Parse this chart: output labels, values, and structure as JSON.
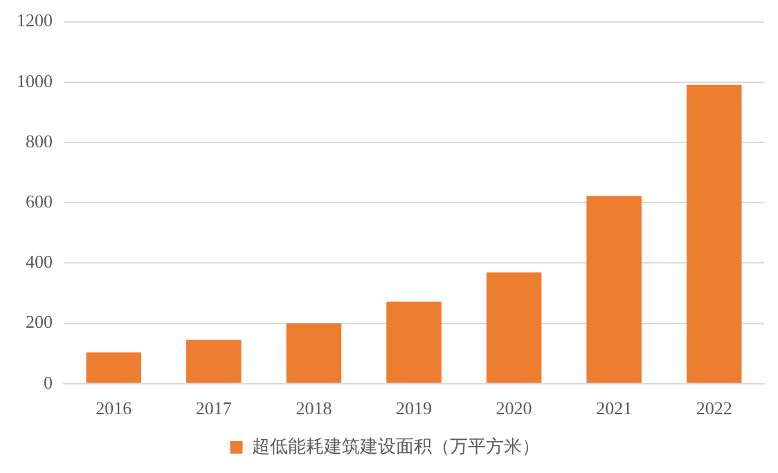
{
  "chart_data": {
    "type": "bar",
    "categories": [
      "2016",
      "2017",
      "2018",
      "2019",
      "2020",
      "2021",
      "2022"
    ],
    "series": [
      {
        "name": "超低能耗建筑建设面积（万平方米）",
        "color": "#ed7d31",
        "values": [
          104,
          145,
          200,
          272,
          369,
          623,
          991
        ]
      }
    ],
    "ylim": [
      0,
      1200
    ],
    "yticks": [
      0,
      200,
      400,
      600,
      800,
      1000,
      1200
    ],
    "grid": "y",
    "legend": "bottom"
  }
}
